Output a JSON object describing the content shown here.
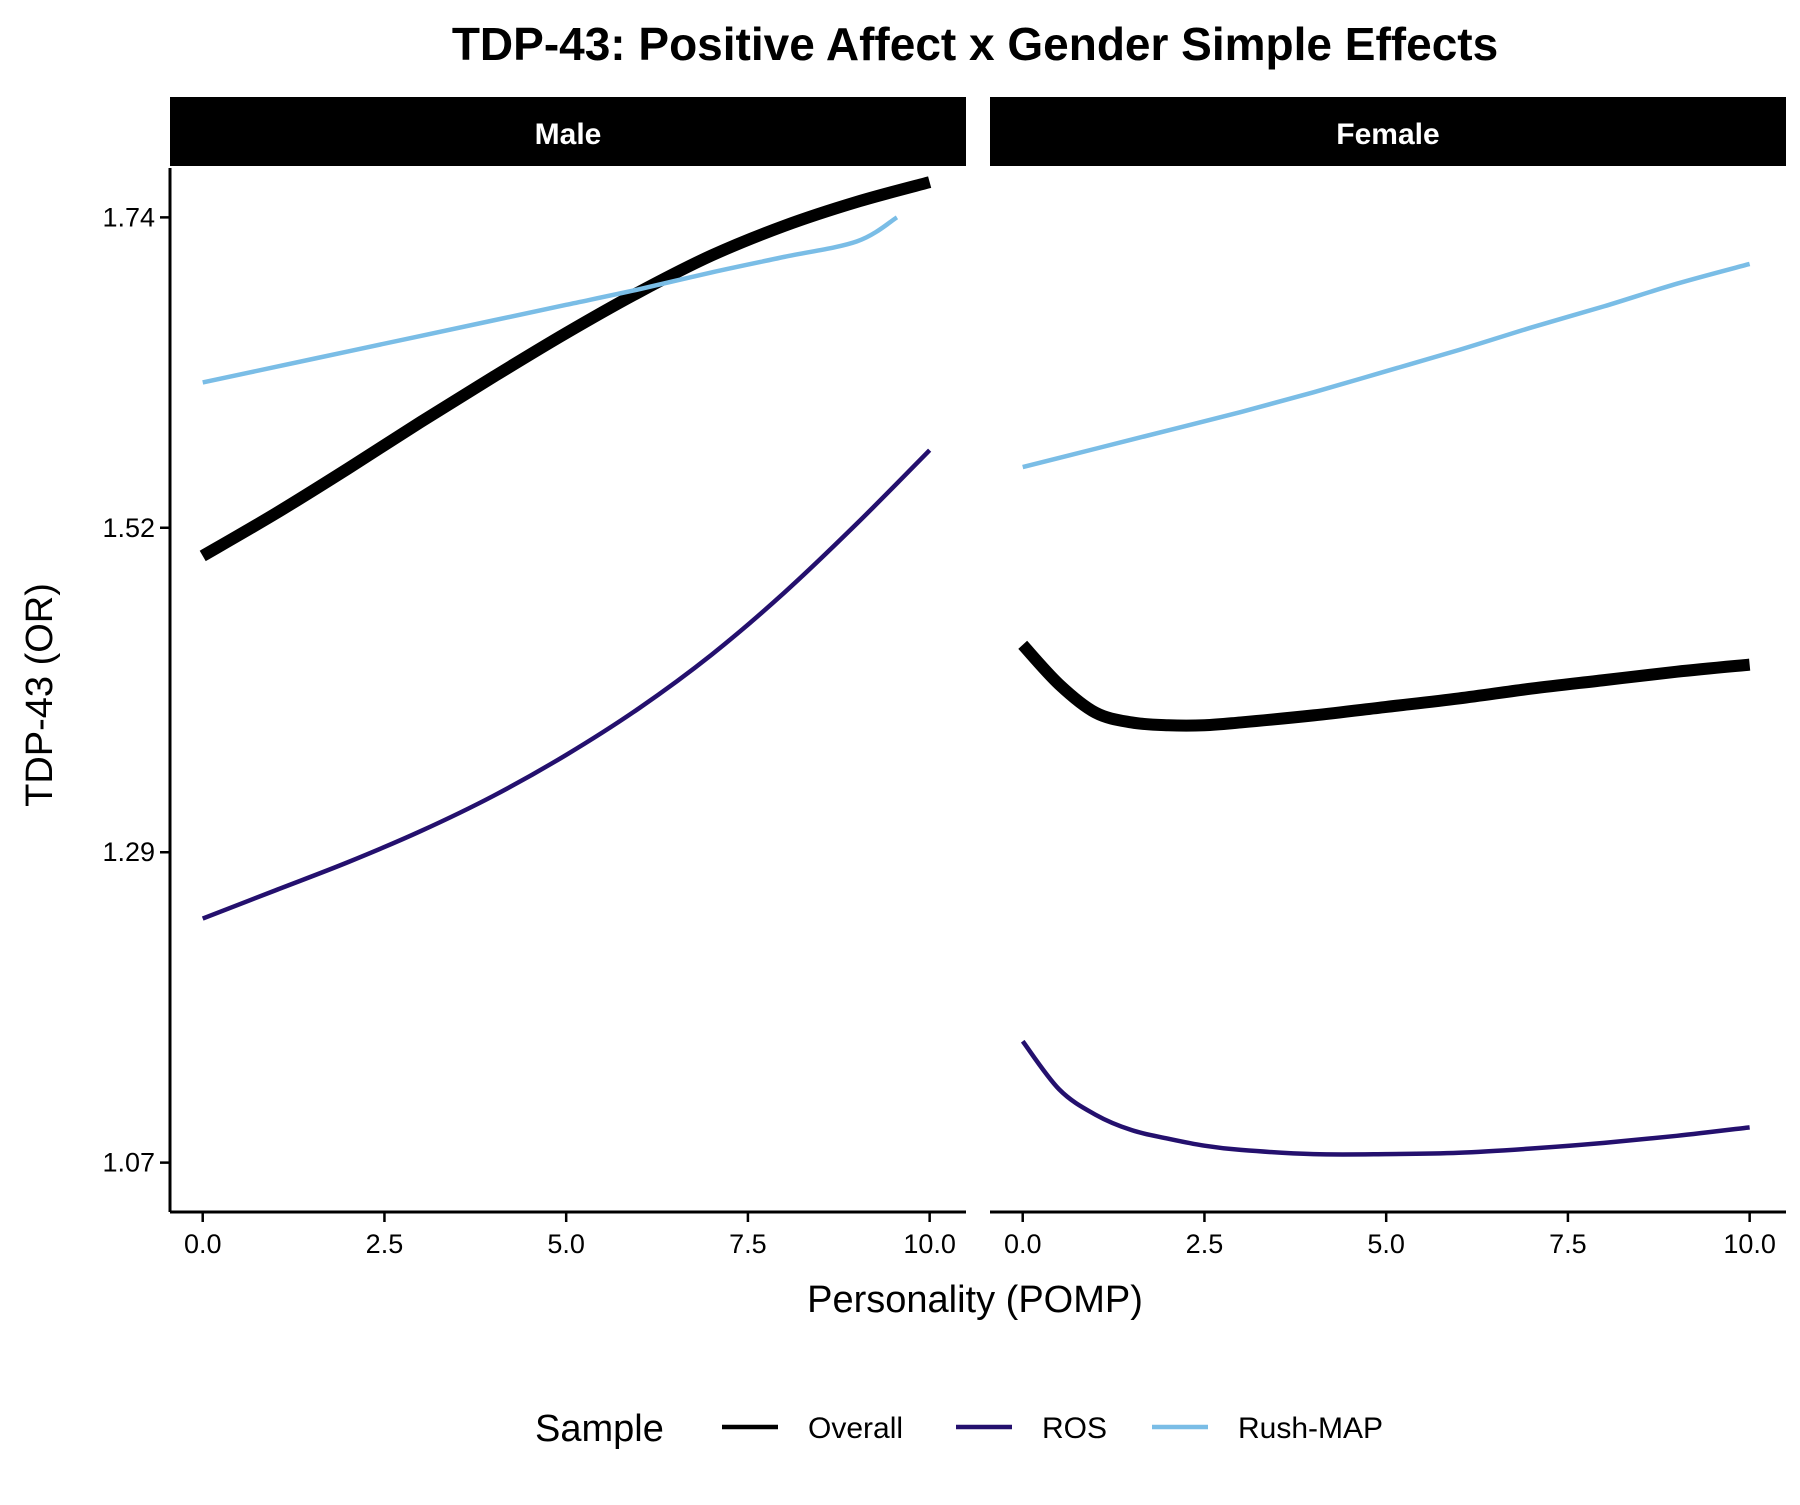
{
  "chart_data": {
    "type": "line",
    "title": "TDP-43: Positive Affect x Gender Simple Effects",
    "xlabel": "Personality (POMP)",
    "ylabel": "TDP-43 (OR)",
    "xlim": [
      -0.45,
      10.5
    ],
    "ylim": [
      1.035,
      1.775
    ],
    "x_ticks": [
      0,
      2.5,
      5,
      7.5,
      10
    ],
    "x_tick_labels": [
      "0.0",
      "2.5",
      "5.0",
      "7.5",
      "10.0"
    ],
    "y_ticks": [
      1.07,
      1.29,
      1.52,
      1.74
    ],
    "y_tick_labels": [
      "1.07",
      "1.29",
      "1.52",
      "1.74"
    ],
    "grid": false,
    "legend": {
      "title": "Sample",
      "position": "bottom",
      "entries": [
        {
          "label": "Overall",
          "color": "#000000"
        },
        {
          "label": "ROS",
          "color": "#24106e"
        },
        {
          "label": "Rush-MAP",
          "color": "#7abde6"
        }
      ]
    },
    "panels": [
      {
        "strip": "Male",
        "series": [
          {
            "name": "Overall",
            "color": "#000000",
            "width": 12,
            "x": [
              0,
              1,
              2,
              3,
              4,
              5,
              6,
              7,
              8,
              9,
              10
            ],
            "y": [
              1.5,
              1.53,
              1.562,
              1.595,
              1.627,
              1.658,
              1.687,
              1.713,
              1.734,
              1.751,
              1.765
            ]
          },
          {
            "name": "ROS",
            "color": "#24106e",
            "width": 4.5,
            "x": [
              0,
              1,
              2,
              3,
              4,
              5,
              6,
              7,
              8,
              9,
              10
            ],
            "y": [
              1.243,
              1.263,
              1.283,
              1.305,
              1.33,
              1.359,
              1.392,
              1.43,
              1.474,
              1.523,
              1.575
            ]
          },
          {
            "name": "Rush-MAP",
            "color": "#7abde6",
            "width": 4.5,
            "x": [
              0,
              1,
              2,
              3,
              4,
              5,
              6,
              7,
              8,
              9,
              9.55
            ],
            "y": [
              1.623,
              1.634,
              1.645,
              1.656,
              1.667,
              1.678,
              1.689,
              1.701,
              1.712,
              1.723,
              1.74
            ]
          }
        ]
      },
      {
        "strip": "Female",
        "series": [
          {
            "name": "Overall",
            "color": "#000000",
            "width": 12,
            "x": [
              0,
              0.5,
              1,
              1.5,
              2,
              2.5,
              3,
              4,
              5,
              6,
              7,
              8,
              9,
              10
            ],
            "y": [
              1.437,
              1.409,
              1.389,
              1.382,
              1.38,
              1.38,
              1.382,
              1.387,
              1.393,
              1.399,
              1.406,
              1.412,
              1.418,
              1.423
            ]
          },
          {
            "name": "ROS",
            "color": "#24106e",
            "width": 4.5,
            "x": [
              0,
              0.5,
              1,
              1.5,
              2,
              2.5,
              3,
              4,
              5,
              6,
              7,
              8,
              9,
              10
            ],
            "y": [
              1.156,
              1.122,
              1.104,
              1.093,
              1.087,
              1.082,
              1.079,
              1.076,
              1.076,
              1.077,
              1.08,
              1.084,
              1.089,
              1.095
            ]
          },
          {
            "name": "Rush-MAP",
            "color": "#7abde6",
            "width": 4.5,
            "x": [
              0,
              1,
              2,
              3,
              4,
              5,
              6,
              7,
              8,
              9,
              10
            ],
            "y": [
              1.563,
              1.576,
              1.589,
              1.602,
              1.616,
              1.631,
              1.646,
              1.662,
              1.677,
              1.693,
              1.707
            ]
          }
        ]
      }
    ]
  }
}
